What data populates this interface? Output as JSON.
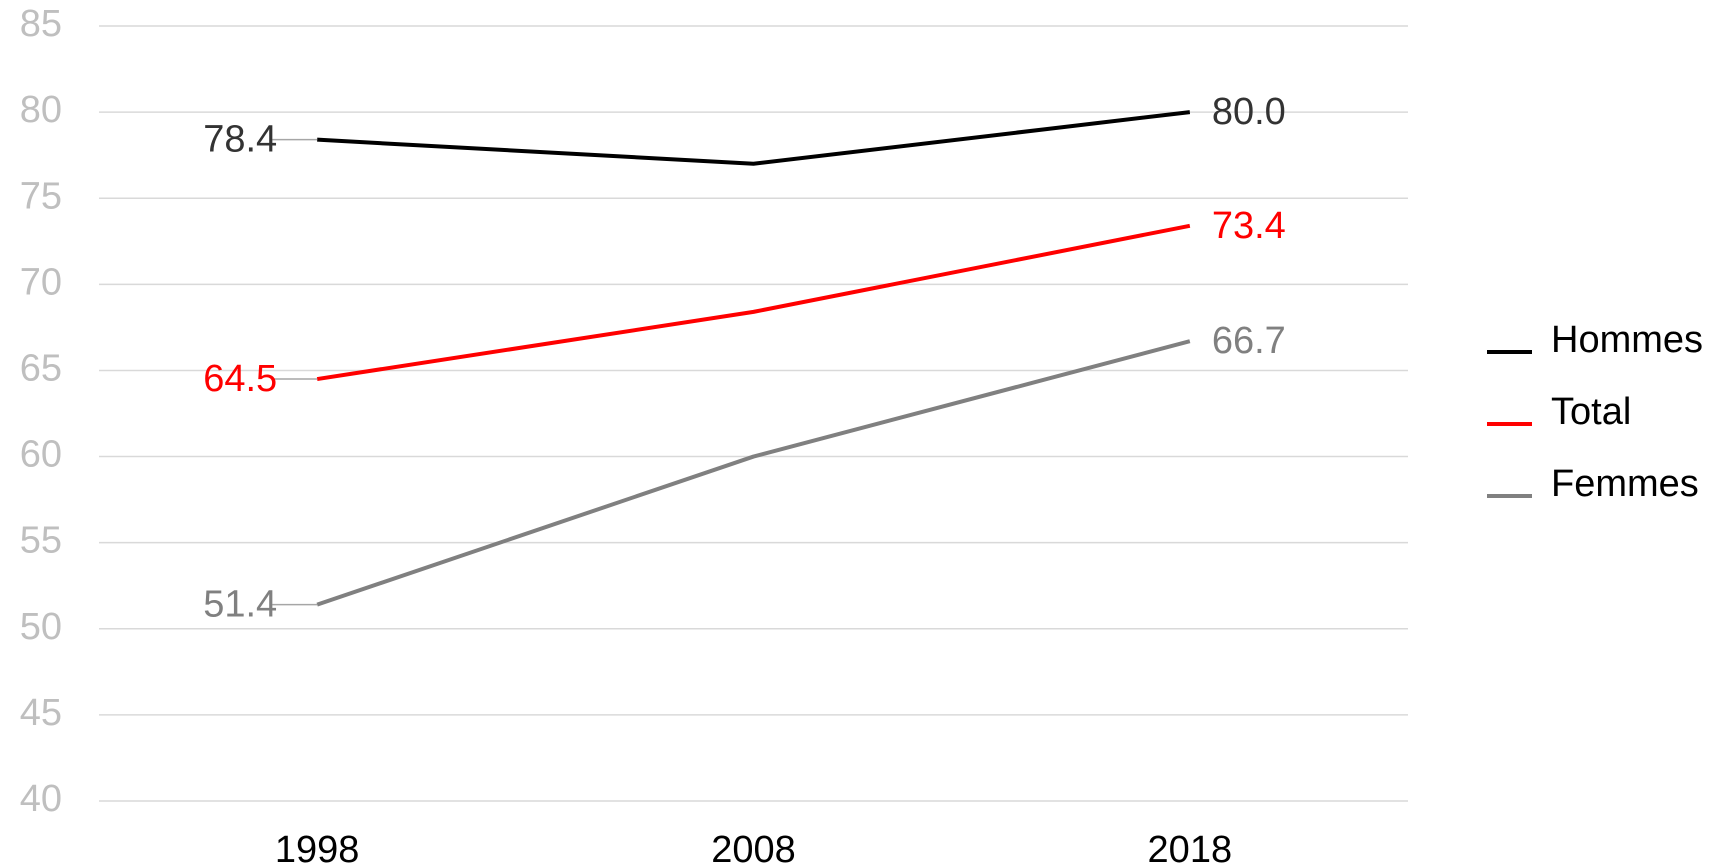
{
  "chart_data": {
    "type": "line",
    "categories": [
      "1998",
      "2008",
      "2018"
    ],
    "series": [
      {
        "name": "Hommes",
        "color": "#000000",
        "values": [
          78.4,
          77.0,
          80.0
        ],
        "value_labels": [
          "78.4",
          null,
          "80.0"
        ]
      },
      {
        "name": "Total",
        "color": "#ff0000",
        "values": [
          64.5,
          68.4,
          73.4
        ],
        "value_labels": [
          "64.5",
          null,
          "73.4"
        ]
      },
      {
        "name": "Femmes",
        "color": "#808080",
        "values": [
          51.4,
          60.0,
          66.7
        ],
        "value_labels": [
          "51.4",
          null,
          "66.7"
        ]
      }
    ],
    "ylim": [
      40,
      85
    ],
    "yticks": [
      40,
      45,
      50,
      55,
      60,
      65,
      70,
      75,
      80,
      85
    ],
    "grid": true,
    "legend": "right"
  }
}
